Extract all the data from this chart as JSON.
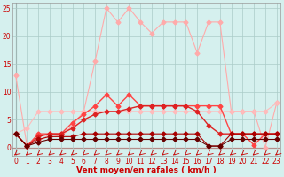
{
  "xlabel": "Vent moyen/en rafales ( km/h )",
  "x": [
    0,
    1,
    2,
    3,
    4,
    5,
    6,
    7,
    8,
    9,
    10,
    11,
    12,
    13,
    14,
    15,
    16,
    17,
    18,
    19,
    20,
    21,
    22,
    23
  ],
  "ylim": [
    -1.5,
    26
  ],
  "xlim": [
    -0.3,
    23.3
  ],
  "bg_color": "#d5f0ee",
  "grid_color": "#aaccc8",
  "series": [
    {
      "values": [
        13.0,
        0.3,
        1.0,
        2.5,
        2.0,
        4.0,
        6.5,
        15.5,
        25.0,
        22.5,
        25.0,
        22.5,
        20.5,
        22.5,
        22.5,
        22.5,
        17.0,
        22.5,
        22.5,
        6.5,
        6.5,
        6.5,
        0.0,
        8.0
      ],
      "color": "#ffaaaa",
      "marker": "D",
      "markersize": 2.5,
      "linewidth": 0.8,
      "linestyle": "-"
    },
    {
      "values": [
        2.5,
        3.5,
        6.5,
        6.5,
        6.5,
        6.5,
        6.5,
        6.5,
        6.5,
        6.5,
        6.5,
        6.5,
        6.5,
        6.5,
        6.5,
        6.5,
        6.5,
        6.5,
        6.5,
        6.5,
        6.5,
        6.5,
        6.5,
        8.0
      ],
      "color": "#ffbbbb",
      "marker": "D",
      "markersize": 2.5,
      "linewidth": 0.8,
      "linestyle": "-"
    },
    {
      "values": [
        2.5,
        0.3,
        2.5,
        2.5,
        2.5,
        4.5,
        6.0,
        7.5,
        9.5,
        7.5,
        9.5,
        7.5,
        7.5,
        7.5,
        7.5,
        7.5,
        7.5,
        7.5,
        7.5,
        2.5,
        2.5,
        0.5,
        2.5,
        2.5
      ],
      "color": "#ff4444",
      "marker": "D",
      "markersize": 2.5,
      "linewidth": 1.0,
      "linestyle": "-"
    },
    {
      "values": [
        2.5,
        0.3,
        2.0,
        2.5,
        2.5,
        3.5,
        5.0,
        6.0,
        6.5,
        6.5,
        7.0,
        7.5,
        7.5,
        7.5,
        7.5,
        7.5,
        6.5,
        4.0,
        2.5,
        2.5,
        2.5,
        2.5,
        2.5,
        2.5
      ],
      "color": "#dd2222",
      "marker": "D",
      "markersize": 2.5,
      "linewidth": 1.0,
      "linestyle": "-"
    },
    {
      "values": [
        2.5,
        0.3,
        1.5,
        2.0,
        2.0,
        2.0,
        2.5,
        2.5,
        2.5,
        2.5,
        2.5,
        2.5,
        2.5,
        2.5,
        2.5,
        2.5,
        2.5,
        0.3,
        0.3,
        2.5,
        2.5,
        2.5,
        2.5,
        2.5
      ],
      "color": "#aa0000",
      "marker": "D",
      "markersize": 2.5,
      "linewidth": 0.8,
      "linestyle": "-"
    },
    {
      "values": [
        2.5,
        0.3,
        1.0,
        1.5,
        1.5,
        1.5,
        1.5,
        1.5,
        1.5,
        1.5,
        1.5,
        1.5,
        1.5,
        1.5,
        1.5,
        1.5,
        1.5,
        0.3,
        0.3,
        1.5,
        1.5,
        1.5,
        1.5,
        1.5
      ],
      "color": "#660000",
      "marker": "D",
      "markersize": 2.5,
      "linewidth": 0.8,
      "linestyle": "-"
    }
  ],
  "yticks": [
    0,
    5,
    10,
    15,
    20,
    25
  ],
  "tick_fontsize": 5.5,
  "xlabel_fontsize": 6.5
}
